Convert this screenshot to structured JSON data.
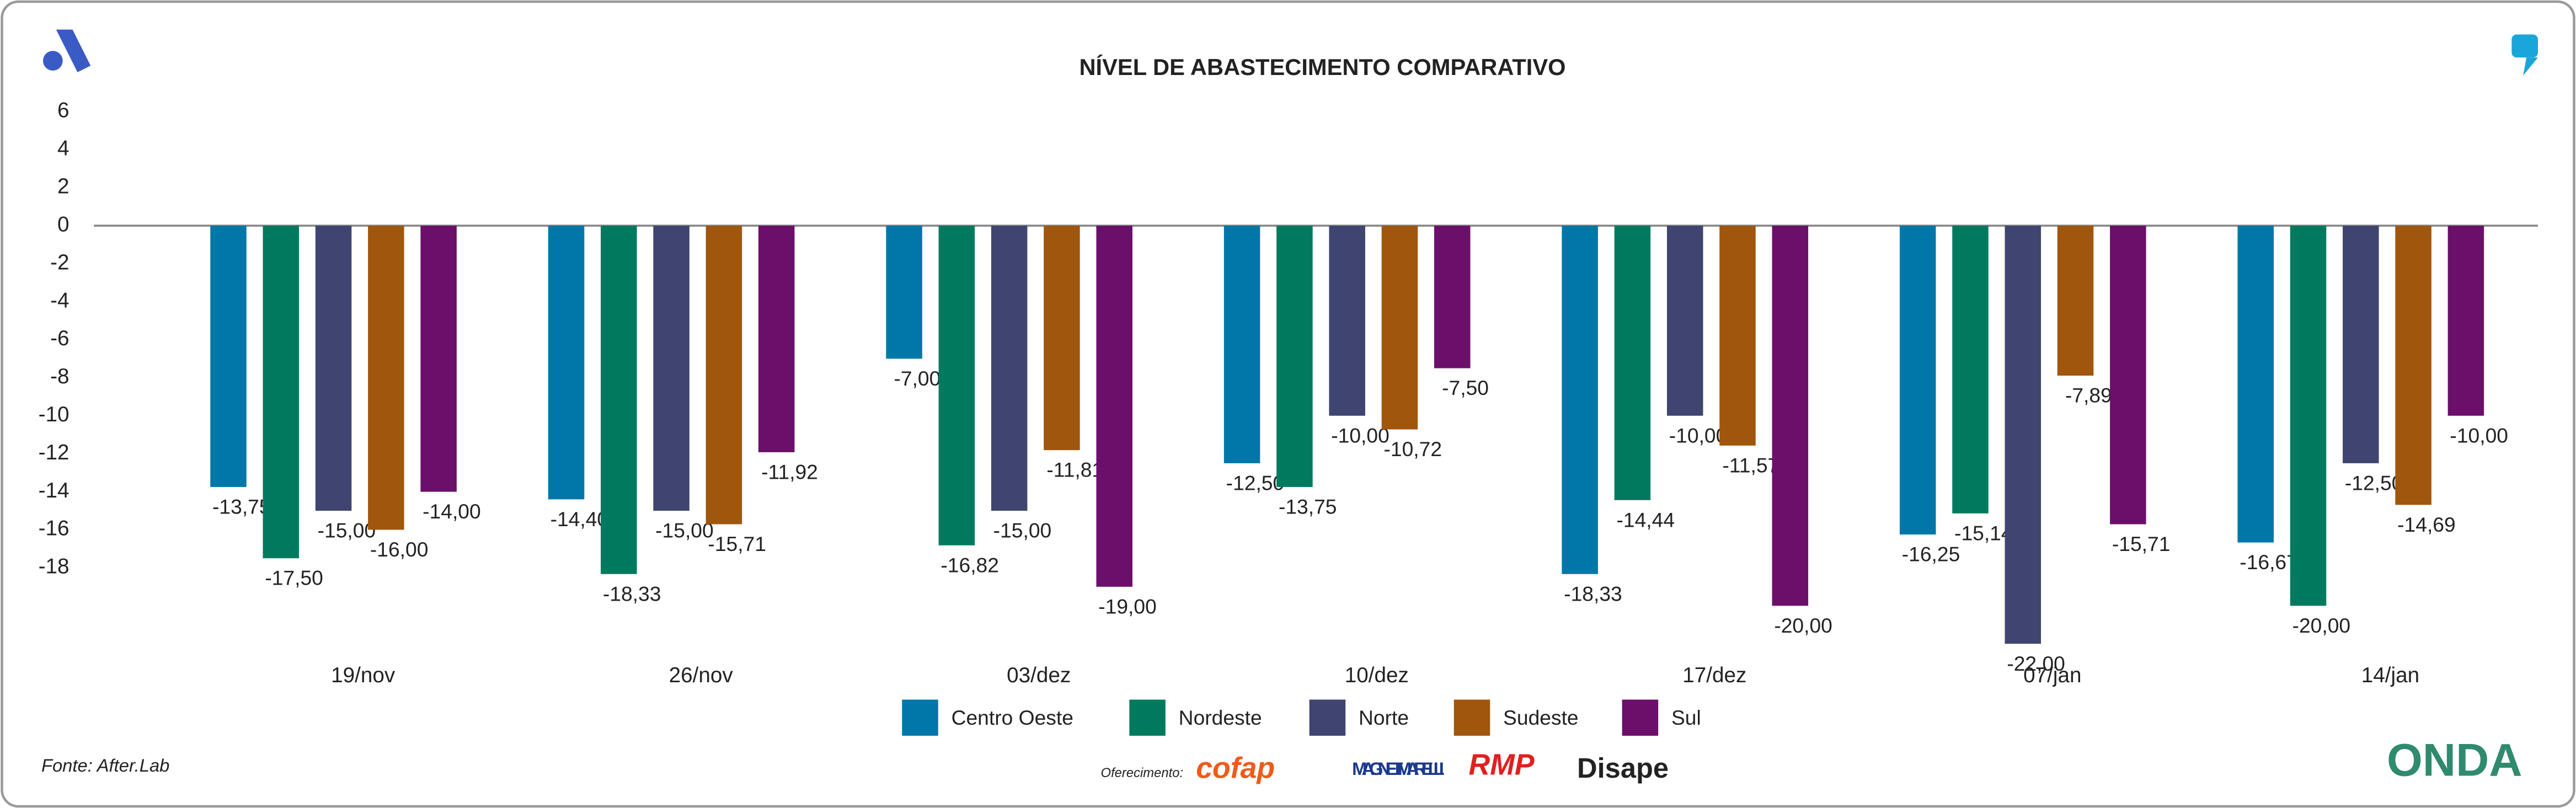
{
  "chart_data": {
    "type": "bar",
    "title": "NÍVEL DE ABASTECIMENTO COMPARATIVO",
    "source": "Fonte: After.Lab",
    "categories": [
      "19/nov",
      "26/nov",
      "03/dez",
      "10/dez",
      "17/dez",
      "07/jan",
      "14/jan"
    ],
    "series": [
      {
        "name": "Centro Oeste",
        "color": "#0077a8",
        "values": [
          -13.75,
          -14.4,
          -7.0,
          -12.5,
          -18.33,
          -16.25,
          -16.67
        ],
        "value_labels": [
          "-13,75",
          "-14,40",
          "-7,00",
          "-12,50",
          "-18,33",
          "-16,25",
          "-16,67"
        ]
      },
      {
        "name": "Nordeste",
        "color": "#007a5e",
        "values": [
          -17.5,
          -18.33,
          -16.82,
          -13.75,
          -14.44,
          -15.14,
          -20.0
        ],
        "value_labels": [
          "-17,50",
          "-18,33",
          "-16,82",
          "-13,75",
          "-14,44",
          "-15,14",
          "-20,00"
        ]
      },
      {
        "name": "Norte",
        "color": "#3f4570",
        "values": [
          -15.0,
          -15.0,
          -15.0,
          -10.0,
          -10.0,
          -22.0,
          -12.5
        ],
        "value_labels": [
          "-15,00",
          "-15,00",
          "-15,00",
          "-10,00",
          "-10,00",
          "-22,00",
          "-12,50"
        ]
      },
      {
        "name": "Sudeste",
        "color": "#a0560d",
        "values": [
          -16.0,
          -15.71,
          -11.81,
          -10.72,
          -11.57,
          -7.89,
          -14.69
        ],
        "value_labels": [
          "-16,00",
          "-15,71",
          "-11,81",
          "-10,72",
          "-11,57",
          "-7,89",
          "-14,69"
        ]
      },
      {
        "name": "Sul",
        "color": "#6b0f6b",
        "values": [
          -14.0,
          -11.92,
          -19.0,
          -7.5,
          -20.0,
          -15.71,
          -10.0
        ],
        "value_labels": [
          "-14,00",
          "-11,92",
          "-19,00",
          "-7,50",
          "-20,00",
          "-15,71",
          "-10,00"
        ]
      }
    ],
    "ylim": [
      -22,
      6
    ],
    "yticks": [
      6,
      4,
      2,
      0,
      -2,
      -4,
      -6,
      -8,
      -10,
      -12,
      -14,
      -16,
      -18
    ],
    "grid": false,
    "legend": "bottom"
  },
  "footer": {
    "sponsor_label": "Oferecimento:",
    "sponsors": [
      "cofap",
      "MAGNETI MARELLI",
      "RMP",
      "Disape"
    ],
    "brand": "ONDA"
  }
}
